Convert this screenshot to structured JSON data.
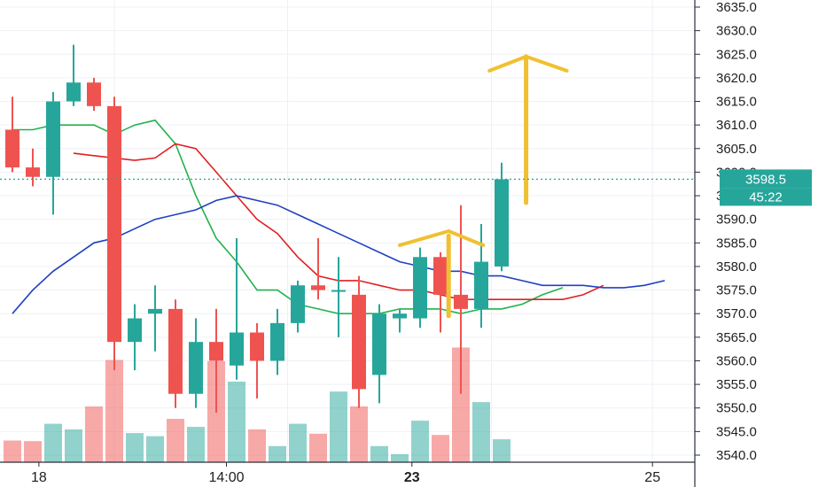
{
  "chart_data": {
    "type": "candlestick",
    "y_axis": {
      "ticks": [
        "3635.0",
        "3630.0",
        "3625.0",
        "3620.0",
        "3615.0",
        "3610.0",
        "3605.0",
        "3600.0",
        "3595.0",
        "3590.0",
        "3585.0",
        "3580.0",
        "3575.0",
        "3570.0",
        "3565.0",
        "3560.0",
        "3555.0",
        "3550.0",
        "3545.0",
        "3540.0"
      ],
      "range": [
        3538.5,
        3636.5
      ]
    },
    "x_axis": {
      "labels": [
        {
          "text": "18",
          "slot": 1.3,
          "bold": false
        },
        {
          "text": "14:00",
          "slot": 10.5,
          "bold": false
        },
        {
          "text": "23",
          "slot": 19.6,
          "bold": true
        },
        {
          "text": "25",
          "slot": 31.4,
          "bold": false
        }
      ]
    },
    "current_price": {
      "value": 3598.5,
      "label": "3598.5",
      "countdown": "45:22",
      "color": "#26a69a"
    },
    "colors": {
      "up": "#26a69a",
      "down": "#ef5350",
      "ma_fast": "#22b14c",
      "ma_mid": "#e02020",
      "ma_slow": "#2040c0",
      "arrow": "#f0c030",
      "grid": "#eef1f5"
    },
    "candles": [
      {
        "o": 3609,
        "h": 3616,
        "l": 3600,
        "c": 3601,
        "v": 3.5
      },
      {
        "o": 3601,
        "h": 3605,
        "l": 3597,
        "c": 3599,
        "v": 3.4
      },
      {
        "o": 3599,
        "h": 3617,
        "l": 3591,
        "c": 3615,
        "v": 6.2
      },
      {
        "o": 3615,
        "h": 3627,
        "l": 3614,
        "c": 3619,
        "v": 5.3
      },
      {
        "o": 3619,
        "h": 3620,
        "l": 3613,
        "c": 3614,
        "v": 9.0
      },
      {
        "o": 3614,
        "h": 3616,
        "l": 3558,
        "c": 3564,
        "v": 16.5
      },
      {
        "o": 3564,
        "h": 3572,
        "l": 3558,
        "c": 3569,
        "v": 4.7
      },
      {
        "o": 3570,
        "h": 3576,
        "l": 3562,
        "c": 3571,
        "v": 4.2
      },
      {
        "o": 3571,
        "h": 3573,
        "l": 3550,
        "c": 3553,
        "v": 7.0
      },
      {
        "o": 3553,
        "h": 3569,
        "l": 3550,
        "c": 3564,
        "v": 5.7
      },
      {
        "o": 3564,
        "h": 3571,
        "l": 3549,
        "c": 3560,
        "v": 16.3
      },
      {
        "o": 3559,
        "h": 3586,
        "l": 3556,
        "c": 3566,
        "v": 13.0
      },
      {
        "o": 3566,
        "h": 3568,
        "l": 3552,
        "c": 3560,
        "v": 5.3
      },
      {
        "o": 3560,
        "h": 3571,
        "l": 3557,
        "c": 3568,
        "v": 2.6
      },
      {
        "o": 3568,
        "h": 3577,
        "l": 3566,
        "c": 3576,
        "v": 6.2
      },
      {
        "o": 3576,
        "h": 3586,
        "l": 3573,
        "c": 3575,
        "v": 4.6
      },
      {
        "o": 3575,
        "h": 3582,
        "l": 3565,
        "c": 3575,
        "v": 11.4
      },
      {
        "o": 3574,
        "h": 3578,
        "l": 3550,
        "c": 3554,
        "v": 9.0
      },
      {
        "o": 3557,
        "h": 3572,
        "l": 3551,
        "c": 3570,
        "v": 2.6
      },
      {
        "o": 3569,
        "h": 3571,
        "l": 3566,
        "c": 3570,
        "v": 1.3
      },
      {
        "o": 3569,
        "h": 3584,
        "l": 3567,
        "c": 3582,
        "v": 6.7
      },
      {
        "o": 3582,
        "h": 3583,
        "l": 3566,
        "c": 3574,
        "v": 4.4
      },
      {
        "o": 3574,
        "h": 3593,
        "l": 3553,
        "c": 3571,
        "v": 18.5
      },
      {
        "o": 3571,
        "h": 3589,
        "l": 3567,
        "c": 3581,
        "v": 9.7
      },
      {
        "o": 3580,
        "h": 3602,
        "l": 3579,
        "c": 3598.5,
        "v": 3.7
      }
    ],
    "moving_averages": [
      {
        "key": "ma_fast",
        "slots": [
          0,
          1,
          2,
          3,
          4,
          5,
          6,
          7,
          8,
          9,
          10,
          11,
          12,
          13,
          14,
          15,
          16,
          17,
          18,
          19,
          20,
          21,
          22,
          23,
          24,
          25,
          26,
          27
        ],
        "values": [
          3609,
          3609,
          3610,
          3610,
          3610,
          3608,
          3610,
          3611,
          3606,
          3595,
          3586,
          3581,
          3575,
          3575,
          3572,
          3571,
          3570,
          3570,
          3570,
          3571,
          3571,
          3571,
          3570,
          3571,
          3571,
          3572,
          3574,
          3575.5
        ]
      },
      {
        "key": "ma_mid",
        "slots": [
          3,
          4,
          5,
          6,
          7,
          8,
          9,
          10,
          11,
          12,
          13,
          14,
          15,
          16,
          17,
          18,
          19,
          20,
          21,
          22,
          23,
          24,
          25,
          26,
          27,
          28,
          29
        ],
        "values": [
          3604,
          3603.5,
          3603,
          3602.5,
          3603,
          3606,
          3605,
          3600,
          3595,
          3590,
          3587,
          3582,
          3578,
          3577,
          3577,
          3576,
          3575,
          3575,
          3574,
          3573,
          3573,
          3573,
          3573,
          3573,
          3573,
          3574,
          3576
        ]
      },
      {
        "key": "ma_slow",
        "slots": [
          0,
          1,
          2,
          3,
          4,
          5,
          6,
          7,
          8,
          9,
          10,
          11,
          12,
          13,
          14,
          15,
          16,
          17,
          18,
          19,
          20,
          21,
          22,
          23,
          24,
          25,
          26,
          27,
          28,
          29,
          30,
          31,
          32
        ],
        "values": [
          3570,
          3575,
          3579,
          3582,
          3585,
          3586,
          3588,
          3590,
          3591,
          3592,
          3594,
          3595,
          3594,
          3593,
          3591,
          3589,
          3587,
          3585,
          3583,
          3581,
          3580,
          3579,
          3579,
          3578,
          3578,
          3577,
          3576,
          3576,
          3576,
          3575.5,
          3575.5,
          3576,
          3577
        ]
      }
    ],
    "annotations": [
      {
        "type": "arrow-up",
        "x_slot": 25.2,
        "y_from": 3593.5,
        "y_to": 3624.5,
        "head_left_slot": 23.4,
        "head_right_slot": 27.2,
        "head_y": 3621.5
      },
      {
        "type": "chevron",
        "left_slot": 19.0,
        "apex_slot": 21.4,
        "right_slot": 23.1,
        "base": 3584.5,
        "apex": 3587.5
      },
      {
        "type": "stem",
        "x_slot": 21.4,
        "y_top": 3586.5,
        "y_bottom": 3569.5
      }
    ],
    "grid": true
  }
}
